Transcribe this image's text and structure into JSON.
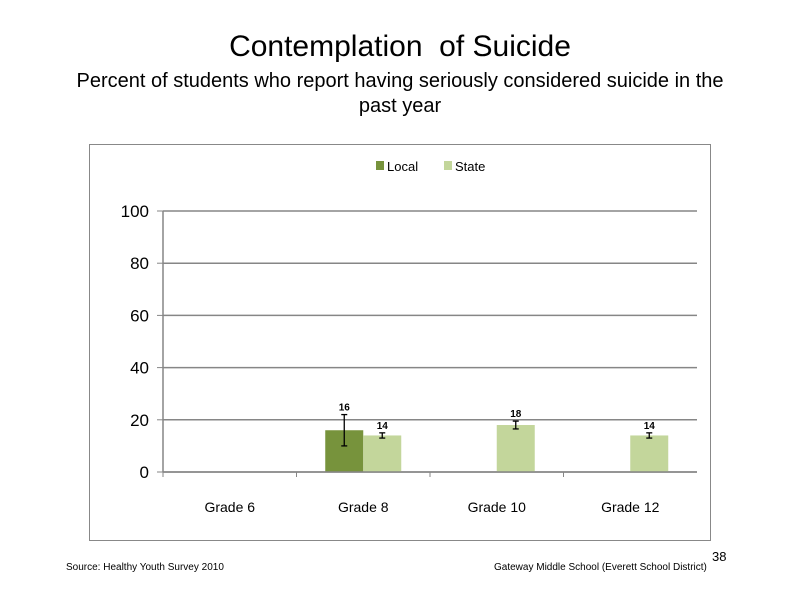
{
  "slide": {
    "title": "Contemplation  of Suicide",
    "subtitle": "Percent of students who report having seriously considered suicide in the past year",
    "source": "Source: Healthy Youth Survey 2010",
    "school": "Gateway Middle  School (Everett School District)",
    "page_number": "38"
  },
  "chart_data": {
    "type": "bar",
    "categories": [
      "Grade 6",
      "Grade 8",
      "Grade 10",
      "Grade 12"
    ],
    "series": [
      {
        "name": "Local",
        "color": "#77933c",
        "values": [
          null,
          16,
          null,
          null
        ],
        "error": [
          null,
          6,
          null,
          null
        ]
      },
      {
        "name": "State",
        "color": "#c3d69b",
        "values": [
          null,
          14,
          18,
          14
        ],
        "error": [
          null,
          1,
          1.5,
          1
        ]
      }
    ],
    "data_labels": [
      [
        null,
        "16",
        null,
        null
      ],
      [
        null,
        "14",
        "18",
        "14"
      ]
    ],
    "ylim": [
      0,
      100
    ],
    "yticks": [
      0,
      20,
      40,
      60,
      80,
      100
    ],
    "grid": true,
    "legend_position": "top"
  }
}
